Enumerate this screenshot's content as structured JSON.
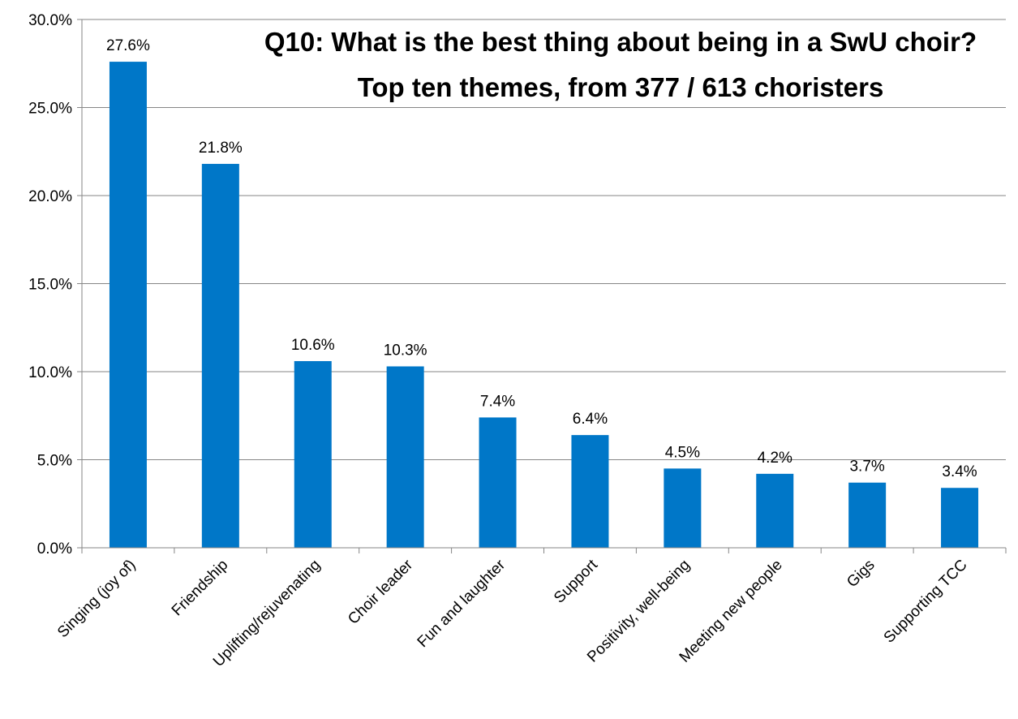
{
  "chart_data": {
    "type": "bar",
    "title": "Q10: What is the best thing about being in a SwU choir?",
    "subtitle": "Top ten themes, from 377 / 613 choristers",
    "categories": [
      "Singing (joy of)",
      "Friendship",
      "Uplifting/rejuvenating",
      "Choir leader",
      "Fun and laughter",
      "Support",
      "Positivity, well-being",
      "Meeting new people",
      "Gigs",
      "Supporting TCC"
    ],
    "values": [
      27.6,
      21.8,
      10.6,
      10.3,
      7.4,
      6.4,
      4.5,
      4.2,
      3.7,
      3.4
    ],
    "data_labels": [
      "27.6%",
      "21.8%",
      "10.6%",
      "10.3%",
      "7.4%",
      "6.4%",
      "4.5%",
      "4.2%",
      "3.7%",
      "3.4%"
    ],
    "y_ticks": [
      0,
      5,
      10,
      15,
      20,
      25,
      30
    ],
    "y_tick_labels": [
      "0.0%",
      "5.0%",
      "10.0%",
      "15.0%",
      "20.0%",
      "25.0%",
      "30.0%"
    ],
    "ylim": [
      0,
      30
    ],
    "grid": true,
    "legend": "none",
    "colors": {
      "bar": "#0077C8",
      "grid": "#868686",
      "text": "#000000"
    }
  }
}
